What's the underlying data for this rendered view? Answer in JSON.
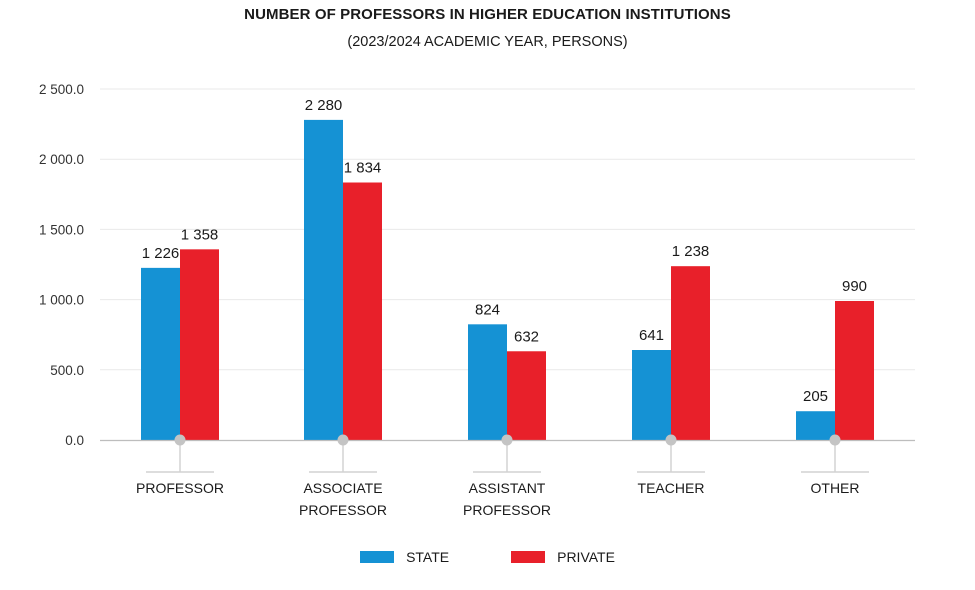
{
  "chart_data": {
    "type": "bar",
    "title": "NUMBER OF PROFESSORS IN HIGHER EDUCATION INSTITUTIONS",
    "subtitle": "(2023/2024 ACADEMIC YEAR, PERSONS)",
    "categories": [
      [
        "PROFESSOR"
      ],
      [
        "ASSOCIATE",
        "PROFESSOR"
      ],
      [
        "ASSISTANT",
        "PROFESSOR"
      ],
      [
        "TEACHER"
      ],
      [
        "OTHER"
      ]
    ],
    "series": [
      {
        "name": "STATE",
        "color": "#1592d4",
        "values": [
          1226,
          2280,
          824,
          641,
          205
        ],
        "labels": [
          "1 226",
          "2 280",
          "824",
          "641",
          "205"
        ]
      },
      {
        "name": "PRIVATE",
        "color": "#e8202a",
        "values": [
          1358,
          1834,
          632,
          1238,
          990
        ],
        "labels": [
          "1 358",
          "1 834",
          "632",
          "1 238",
          "990"
        ]
      }
    ],
    "ylim": [
      0,
      2500
    ],
    "yticks": [
      0,
      500,
      1000,
      1500,
      2000,
      2500
    ],
    "ytick_labels": [
      "0.0",
      "500.0",
      "1 000.0",
      "1 500.0",
      "2 000.0",
      "2 500.0"
    ],
    "xlabel": "",
    "ylabel": "",
    "grid": true,
    "legend_position": "bottom-center"
  }
}
